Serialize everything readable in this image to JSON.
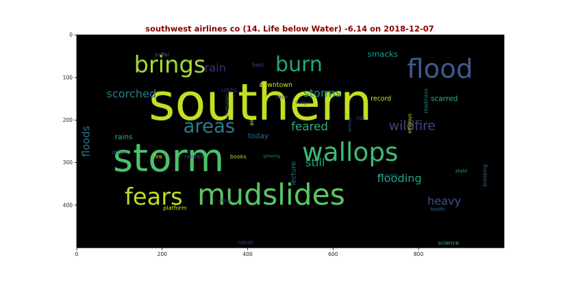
{
  "chart_data": {
    "type": "wordcloud",
    "title": "southwest airlines co (14. Life below Water) -6.14 on 2018-12-07",
    "xlabel": "",
    "ylabel": "",
    "xlim": [
      0,
      1000
    ],
    "ylim": [
      500,
      0
    ],
    "x_ticks": [
      0,
      200,
      400,
      600,
      800
    ],
    "y_ticks": [
      0,
      100,
      200,
      300,
      400
    ],
    "background": "#000000",
    "grid": false,
    "words": [
      {
        "text": "southern",
        "x": 430,
        "y": 160,
        "size": 118,
        "color": "#c2df23",
        "rotate": 0
      },
      {
        "text": "storm",
        "x": 215,
        "y": 290,
        "size": 90,
        "color": "#4ac16d",
        "rotate": 0
      },
      {
        "text": "mudslides",
        "x": 455,
        "y": 375,
        "size": 68,
        "color": "#58c765",
        "rotate": 0
      },
      {
        "text": "wallops",
        "x": 640,
        "y": 275,
        "size": 60,
        "color": "#3dbc74",
        "rotate": 0
      },
      {
        "text": "flood",
        "x": 850,
        "y": 80,
        "size": 62,
        "color": "#3e5a8e",
        "rotate": 0
      },
      {
        "text": "brings",
        "x": 218,
        "y": 70,
        "size": 54,
        "color": "#a5db36",
        "rotate": 0
      },
      {
        "text": "fears",
        "x": 180,
        "y": 380,
        "size": 54,
        "color": "#bddf26",
        "rotate": 0
      },
      {
        "text": "burn",
        "x": 520,
        "y": 70,
        "size": 48,
        "color": "#22a785",
        "rotate": 0
      },
      {
        "text": "areas",
        "x": 310,
        "y": 215,
        "size": 44,
        "color": "#297b8e",
        "rotate": 0
      },
      {
        "text": "feared",
        "x": 545,
        "y": 215,
        "size": 27,
        "color": "#29af7f",
        "rotate": 0
      },
      {
        "text": "wildfire",
        "x": 785,
        "y": 215,
        "size": 30,
        "color": "#404688",
        "rotate": 0
      },
      {
        "text": "flooding",
        "x": 755,
        "y": 337,
        "size": 26,
        "color": "#1fa287",
        "rotate": 0
      },
      {
        "text": "heavy",
        "x": 860,
        "y": 390,
        "size": 26,
        "color": "#3b528b",
        "rotate": 0
      },
      {
        "text": "still",
        "x": 558,
        "y": 300,
        "size": 26,
        "color": "#20a486",
        "rotate": 0
      },
      {
        "text": "storms",
        "x": 575,
        "y": 137,
        "size": 26,
        "color": "#228c8d",
        "rotate": 0
      },
      {
        "text": "scorched",
        "x": 128,
        "y": 138,
        "size": 26,
        "color": "#287c8e",
        "rotate": 0
      },
      {
        "text": "rain",
        "x": 324,
        "y": 77,
        "size": 26,
        "color": "#472d7b",
        "rotate": 0
      },
      {
        "text": "floods",
        "x": 22,
        "y": 250,
        "size": 24,
        "color": "#2b748e",
        "rotate": 270
      },
      {
        "text": "smacks",
        "x": 716,
        "y": 45,
        "size": 19,
        "color": "#1e9c89",
        "rotate": 0
      },
      {
        "text": "scarred",
        "x": 860,
        "y": 150,
        "size": 17,
        "color": "#35b779",
        "rotate": 0
      },
      {
        "text": "record",
        "x": 712,
        "y": 150,
        "size": 15,
        "color": "#cae11f",
        "rotate": 0
      },
      {
        "text": "downtown",
        "x": 466,
        "y": 118,
        "size": 15,
        "color": "#d5e21a",
        "rotate": 0
      },
      {
        "text": "uses",
        "x": 357,
        "y": 130,
        "size": 16,
        "color": "#482576",
        "rotate": 0
      },
      {
        "text": "l",
        "x": 432,
        "y": 118,
        "size": 15,
        "color": "#cde11d",
        "rotate": 0
      },
      {
        "text": "today",
        "x": 425,
        "y": 238,
        "size": 17,
        "color": "#2f6b8e",
        "rotate": 0
      },
      {
        "text": "rains",
        "x": 110,
        "y": 240,
        "size": 17,
        "color": "#30b07a",
        "rotate": 0
      },
      {
        "text": "lecture",
        "x": 508,
        "y": 325,
        "size": 16,
        "color": "#2a788e",
        "rotate": 270
      },
      {
        "text": "face",
        "x": 480,
        "y": 145,
        "size": 13,
        "color": "#443983",
        "rotate": 0
      },
      {
        "text": "best",
        "x": 424,
        "y": 70,
        "size": 13,
        "color": "#3e4989",
        "rotate": 0
      },
      {
        "text": "suffer",
        "x": 200,
        "y": 47,
        "size": 12,
        "color": "#2e6e8e",
        "rotate": 0
      },
      {
        "text": "drops",
        "x": 100,
        "y": 275,
        "size": 13,
        "color": "#38588c",
        "rotate": 0
      },
      {
        "text": "fire",
        "x": 190,
        "y": 285,
        "size": 13,
        "color": "#e2e418",
        "rotate": 0
      },
      {
        "text": "rainfall",
        "x": 274,
        "y": 285,
        "size": 13,
        "color": "#3f4788",
        "rotate": 0
      },
      {
        "text": "books",
        "x": 378,
        "y": 285,
        "size": 13,
        "color": "#b2dd2d",
        "rotate": 0
      },
      {
        "text": "air",
        "x": 409,
        "y": 205,
        "size": 13,
        "color": "#e5e419",
        "rotate": 270
      },
      {
        "text": "risk",
        "x": 664,
        "y": 195,
        "size": 12,
        "color": "#3b528b",
        "rotate": 0
      },
      {
        "text": "readiness",
        "x": 817,
        "y": 155,
        "size": 12,
        "color": "#26828e",
        "rotate": 270
      },
      {
        "text": "employs",
        "x": 780,
        "y": 208,
        "size": 11,
        "color": "#e0e318",
        "rotate": 270
      },
      {
        "text": "defense",
        "x": 640,
        "y": 210,
        "size": 9,
        "color": "#2c728e",
        "rotate": 270
      },
      {
        "text": "budget",
        "x": 530,
        "y": 160,
        "size": 10,
        "color": "#433e85",
        "rotate": 0
      },
      {
        "text": "ecosystem",
        "x": 352,
        "y": 165,
        "size": 10,
        "color": "#33638d",
        "rotate": 270
      },
      {
        "text": "growing",
        "x": 456,
        "y": 285,
        "size": 10,
        "color": "#27808e",
        "rotate": 0
      },
      {
        "text": "recovery",
        "x": 728,
        "y": 330,
        "size": 11,
        "color": "#33638d",
        "rotate": 0
      },
      {
        "text": "state",
        "x": 900,
        "y": 320,
        "size": 11,
        "color": "#1fa287",
        "rotate": 0
      },
      {
        "text": "breaking",
        "x": 955,
        "y": 330,
        "size": 12,
        "color": "#33638d",
        "rotate": 270
      },
      {
        "text": "health",
        "x": 845,
        "y": 410,
        "size": 11,
        "color": "#31688e",
        "rotate": 0
      },
      {
        "text": "platform",
        "x": 230,
        "y": 406,
        "size": 13,
        "color": "#e2e418",
        "rotate": 0
      },
      {
        "text": "global",
        "x": 346,
        "y": 390,
        "size": 10,
        "color": "#482878",
        "rotate": 0
      },
      {
        "text": "robust",
        "x": 395,
        "y": 488,
        "size": 11,
        "color": "#3e4989",
        "rotate": 0
      },
      {
        "text": "science",
        "x": 870,
        "y": 488,
        "size": 13,
        "color": "#35b779",
        "rotate": 0
      }
    ]
  }
}
